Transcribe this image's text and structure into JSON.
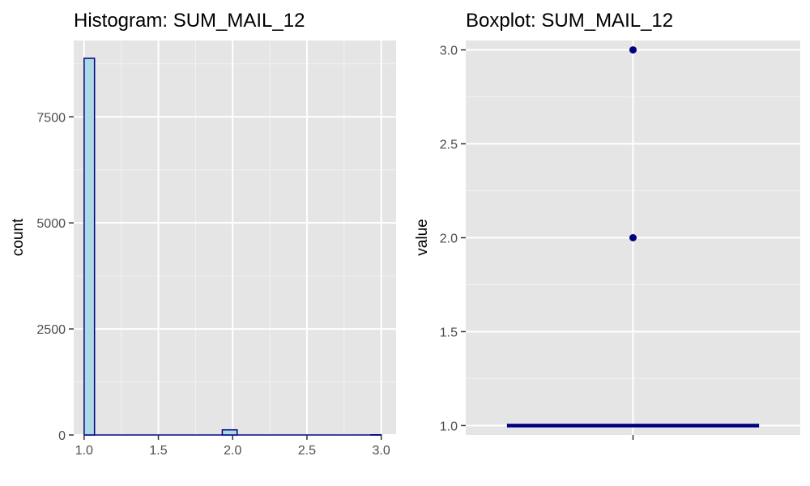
{
  "chart_data": [
    {
      "type": "bar",
      "subtype": "histogram",
      "title": "Histogram: SUM_MAIL_12",
      "xlabel": "",
      "ylabel": "count",
      "xlim": [
        0.93,
        3.1
      ],
      "ylim": [
        0,
        9300
      ],
      "x_ticks": [
        "1.0",
        "1.5",
        "2.0",
        "2.5",
        "3.0"
      ],
      "y_ticks": [
        "0",
        "2500",
        "5000",
        "7500"
      ],
      "bins": [
        {
          "x0": 1.0,
          "x1": 1.07,
          "count": 8880
        },
        {
          "x0": 1.93,
          "x1": 2.03,
          "count": 120
        },
        {
          "x0": 2.93,
          "x1": 3.0,
          "count": 5
        }
      ],
      "bar_fill": "#add8e6",
      "bar_stroke": "#000080",
      "grid": true
    },
    {
      "type": "scatter",
      "subtype": "boxplot",
      "title": "Boxplot: SUM_MAIL_12",
      "xlabel": "",
      "ylabel": "value",
      "ylim": [
        0.95,
        3.05
      ],
      "y_ticks": [
        "1.0",
        "1.5",
        "2.0",
        "2.5",
        "3.0"
      ],
      "box": {
        "min": 1.0,
        "q1": 1.0,
        "median": 1.0,
        "q3": 1.0,
        "max": 1.0
      },
      "outliers": [
        2.0,
        3.0
      ],
      "color": "#000080",
      "grid": true
    }
  ]
}
